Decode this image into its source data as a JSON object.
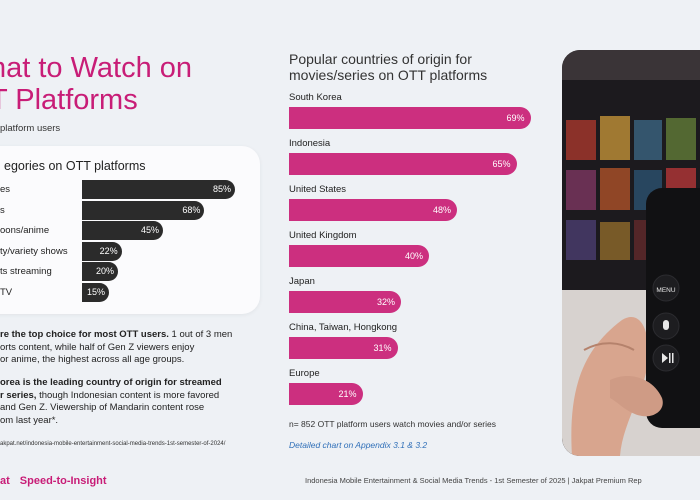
{
  "header": {
    "title_line1": "hat to Watch on",
    "title_line2": "T Platforms",
    "subtitle": "platform users"
  },
  "categories_card": {
    "title": "egories on OTT platforms"
  },
  "chart_data": [
    {
      "type": "bar",
      "title": "egories on OTT platforms",
      "categories": [
        "es",
        "s",
        "oons/anime",
        "ty/variety shows",
        "ts streaming",
        "TV"
      ],
      "values": [
        85,
        68,
        45,
        22,
        20,
        15
      ],
      "value_labels": [
        "85%",
        "68%",
        "45%",
        "22%",
        "20%",
        "15%"
      ],
      "xlim": [
        0,
        100
      ],
      "orientation": "horizontal",
      "bar_color": "#2b2b2b"
    },
    {
      "type": "bar",
      "title": "Popular countries of origin for movies/series on OTT platforms",
      "categories": [
        "South Korea",
        "Indonesia",
        "United States",
        "United Kingdom",
        "Japan",
        "China, Taiwan, Hongkong",
        "Europe"
      ],
      "values": [
        69,
        65,
        48,
        40,
        32,
        31,
        21
      ],
      "value_labels": [
        "69%",
        "65%",
        "48%",
        "40%",
        "32%",
        "31%",
        "21%"
      ],
      "xlim": [
        0,
        100
      ],
      "orientation": "horizontal",
      "bar_color": "#cc2f7f"
    }
  ],
  "body": {
    "p1_bold": "re the top choice for most OTT users.",
    "p1_rest": " 1 out of 3 men",
    "p1_line2": "orts content, while half of Gen Z viewers enjoy",
    "p1_line3": "or anime, the highest across all age groups.",
    "p2_line1_bold": "orea is the leading country of origin for streamed",
    "p2_line2_bold": "r series,",
    "p2_line2_rest": " though Indonesian content is more favored",
    "p2_line3": "and Gen Z. Viewership of Mandarin content rose",
    "p2_line4": "om last year*."
  },
  "source": "akpat.net/indonesia-mobile-entertainment-social-media-trends-1st-semester-of-2024/",
  "right": {
    "title_line1": "Popular countries of origin for",
    "title_line2": "movies/series on OTT platforms",
    "note": "n= 852 OTT platform users watch movies and/or series",
    "appendix": "Detailed chart on Appendix 3.1 & 3.2"
  },
  "footer": {
    "brand_left": "at",
    "brand_tagline": "Speed-to-Insight",
    "text": "Indonesia Mobile Entertainment & Social Media Trends - 1st Semester of 2025 | Jakpat Premium Rep"
  },
  "remote": {
    "menu_label": "MENU"
  },
  "colors": {
    "accent": "#c81d77",
    "bar_pink": "#cc2f7f",
    "bar_dark": "#2b2b2b",
    "link_blue": "#2f6fb8",
    "background": "#eef1f5"
  }
}
